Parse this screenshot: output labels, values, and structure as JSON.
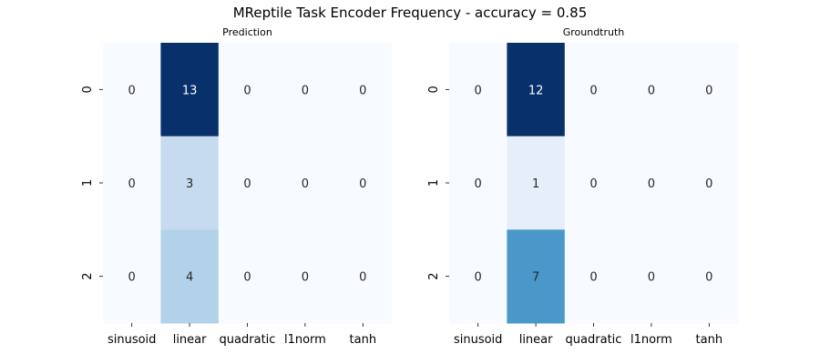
{
  "figure": {
    "suptitle": "MReptile Task Encoder Frequency - accuracy = 0.85"
  },
  "chart_data": [
    {
      "type": "heatmap",
      "title": "Prediction",
      "xlabel": "",
      "ylabel": "",
      "x_categories": [
        "sinusoid",
        "linear",
        "quadratic",
        "l1norm",
        "tanh"
      ],
      "y_categories": [
        "0",
        "1",
        "2"
      ],
      "values": [
        [
          0,
          13,
          0,
          0,
          0
        ],
        [
          0,
          3,
          0,
          0,
          0
        ],
        [
          0,
          4,
          0,
          0,
          0
        ]
      ],
      "colormap": "Blues",
      "cell_colors": [
        [
          "#f7fbff",
          "#08306b",
          "#f7fbff",
          "#f7fbff",
          "#f7fbff"
        ],
        [
          "#f7fbff",
          "#c6dbef",
          "#f7fbff",
          "#f7fbff",
          "#f7fbff"
        ],
        [
          "#f7fbff",
          "#b3d2e9",
          "#f7fbff",
          "#f7fbff",
          "#f7fbff"
        ]
      ],
      "colorbar": false
    },
    {
      "type": "heatmap",
      "title": "Groundtruth",
      "xlabel": "",
      "ylabel": "",
      "x_categories": [
        "sinusoid",
        "linear",
        "quadratic",
        "l1norm",
        "tanh"
      ],
      "y_categories": [
        "0",
        "1",
        "2"
      ],
      "values": [
        [
          0,
          12,
          0,
          0,
          0
        ],
        [
          0,
          1,
          0,
          0,
          0
        ],
        [
          0,
          7,
          0,
          0,
          0
        ]
      ],
      "colormap": "Blues",
      "cell_colors": [
        [
          "#f7fbff",
          "#08306b",
          "#f7fbff",
          "#f7fbff",
          "#f7fbff"
        ],
        [
          "#f7fbff",
          "#e6eff9",
          "#f7fbff",
          "#f7fbff",
          "#f7fbff"
        ],
        [
          "#f7fbff",
          "#4a98c9",
          "#f7fbff",
          "#f7fbff",
          "#f7fbff"
        ]
      ],
      "colorbar": false
    }
  ]
}
